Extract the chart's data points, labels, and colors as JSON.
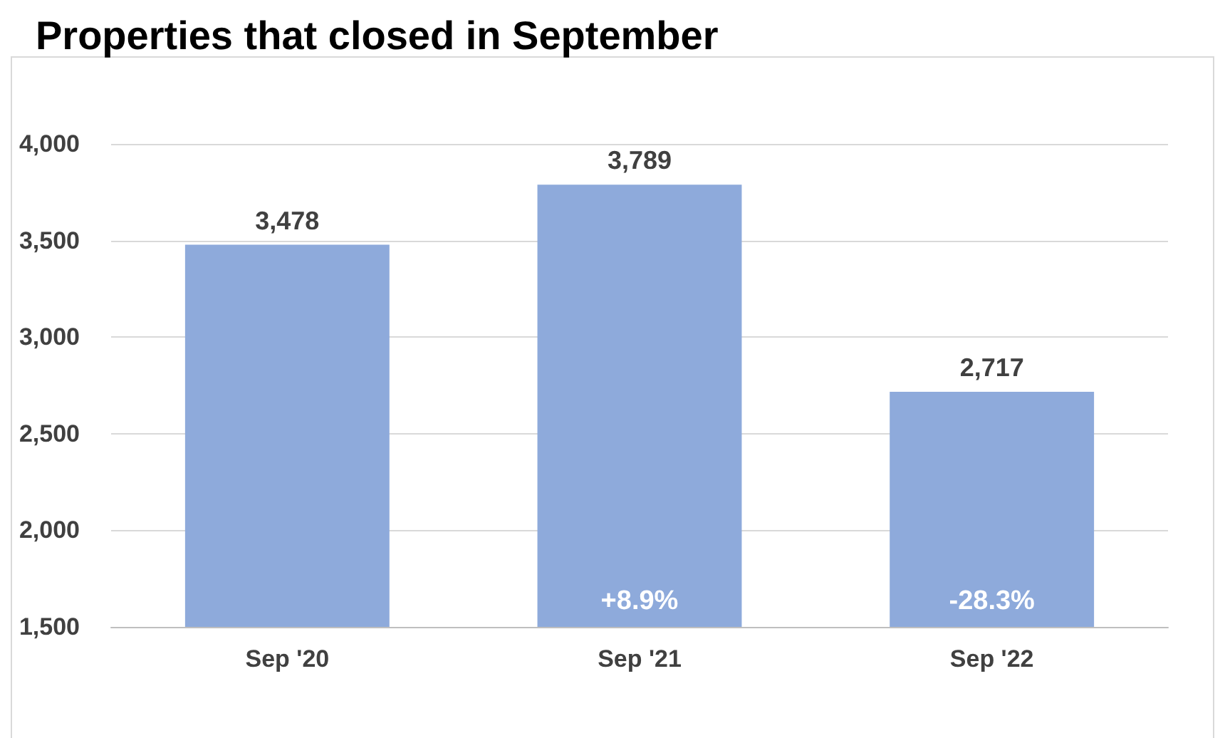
{
  "chart_data": {
    "type": "bar",
    "title": "Properties that closed in September",
    "categories": [
      "Sep '20",
      "Sep '21",
      "Sep '22"
    ],
    "values": [
      3478,
      3789,
      2717
    ],
    "color": "#8eaadb",
    "ylim": [
      1500,
      4000
    ],
    "yticks": [
      {
        "value": 1500,
        "label": "1,500"
      },
      {
        "value": 2000,
        "label": "2,000"
      },
      {
        "value": 2500,
        "label": "2,500"
      },
      {
        "value": 3000,
        "label": "3,000"
      },
      {
        "value": 3500,
        "label": "3,500"
      },
      {
        "value": 4000,
        "label": "4,000"
      }
    ],
    "value_labels": [
      "3,478",
      "3,789",
      "2,717"
    ],
    "grid": "y",
    "annotations": [
      "+8.9%",
      "-28.3%"
    ]
  }
}
